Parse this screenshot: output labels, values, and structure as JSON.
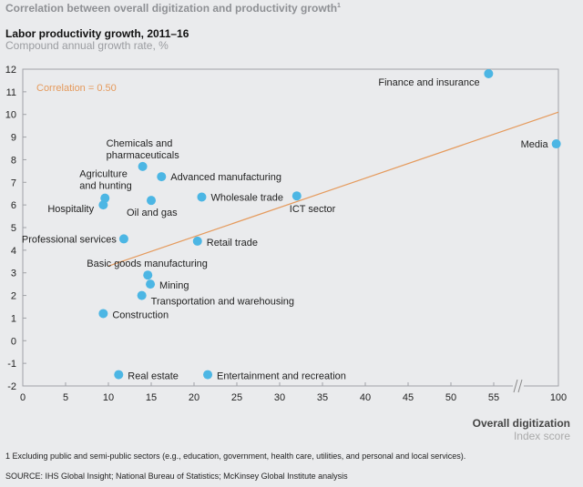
{
  "title": "Correlation between overall digitization and productivity growth",
  "title_footnote_mark": "1",
  "chart_data": {
    "type": "scatter",
    "title": "Labor productivity growth, 2011–16",
    "subtitle": "Compound annual growth rate, %",
    "xlabel": "Overall digitization",
    "xlabel_sub": "Index score",
    "xlim": [
      0,
      100
    ],
    "x_axis_break": [
      57,
      98
    ],
    "ylim": [
      -2,
      12
    ],
    "xticks": [
      0,
      5,
      10,
      15,
      20,
      25,
      30,
      35,
      40,
      45,
      50,
      55,
      100
    ],
    "yticks": [
      -2,
      -1,
      0,
      1,
      2,
      3,
      4,
      5,
      6,
      7,
      8,
      9,
      10,
      11,
      12
    ],
    "grid": false,
    "point_color": "#4cb6e4",
    "trend_color": "#e59a5c",
    "annotation": "Correlation = 0.50",
    "trendline": {
      "x": [
        10,
        100
      ],
      "y": [
        3.3,
        10.1
      ]
    },
    "points": [
      {
        "label": "Finance and insurance",
        "x": 54.4,
        "y": 11.8
      },
      {
        "label": "Media",
        "x": 99.5,
        "y": 8.7
      },
      {
        "label": "Chemicals and pharmaceuticals",
        "x": 14.0,
        "y": 7.7
      },
      {
        "label": "Advanced manufacturing",
        "x": 16.2,
        "y": 7.25
      },
      {
        "label": "Agriculture and hunting",
        "x": 9.6,
        "y": 6.3
      },
      {
        "label": "Hospitality",
        "x": 9.4,
        "y": 6.0
      },
      {
        "label": "Oil and gas",
        "x": 15.0,
        "y": 6.2
      },
      {
        "label": "Wholesale trade",
        "x": 20.9,
        "y": 6.35
      },
      {
        "label": "ICT sector",
        "x": 32.0,
        "y": 6.4
      },
      {
        "label": "Professional services",
        "x": 11.8,
        "y": 4.5
      },
      {
        "label": "Retail trade",
        "x": 20.4,
        "y": 4.4
      },
      {
        "label": "Basic goods manufacturing",
        "x": 14.6,
        "y": 2.9
      },
      {
        "label": "Mining",
        "x": 14.9,
        "y": 2.5
      },
      {
        "label": "Transportation and warehousing",
        "x": 13.9,
        "y": 2.0
      },
      {
        "label": "Construction",
        "x": 9.4,
        "y": 1.2
      },
      {
        "label": "Real estate",
        "x": 11.2,
        "y": -1.5
      },
      {
        "label": "Entertainment and recreation",
        "x": 21.6,
        "y": -1.5
      }
    ]
  },
  "footnote": "1  Excluding public and semi-public sectors (e.g., education, government, health care, utilities, and personal and local services).",
  "source": "SOURCE:  IHS Global Insight; National Bureau of Statistics; McKinsey Global Institute analysis"
}
